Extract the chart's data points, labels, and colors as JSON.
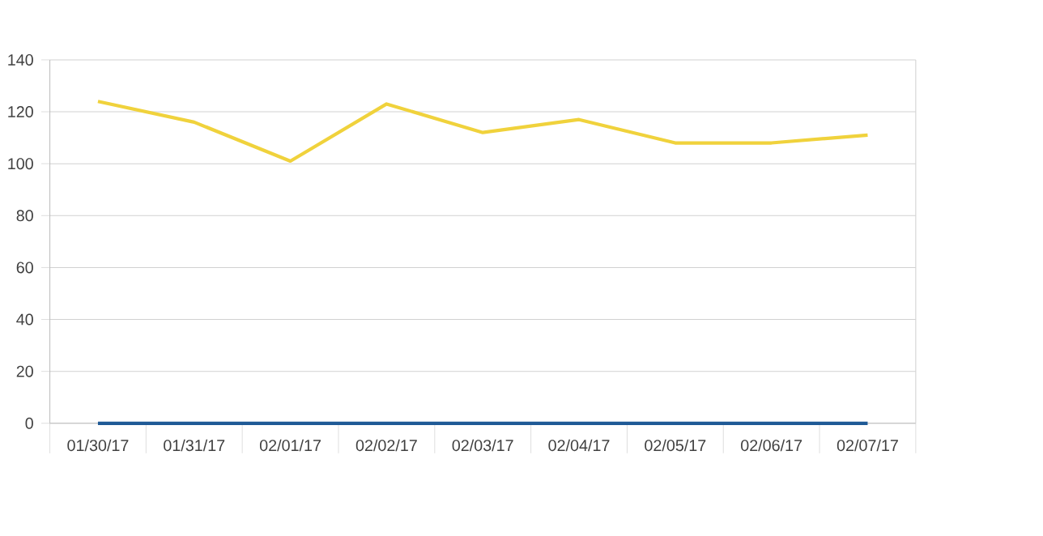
{
  "chart_data": {
    "type": "line",
    "categories": [
      "01/30/17",
      "01/31/17",
      "02/01/17",
      "02/02/17",
      "02/03/17",
      "02/04/17",
      "02/05/17",
      "02/06/17",
      "02/07/17"
    ],
    "series": [
      {
        "color": "#f0d23c",
        "values": [
          124,
          116,
          101,
          123,
          112,
          117,
          108,
          108,
          111
        ]
      },
      {
        "color": "#1f5a96",
        "values": [
          0,
          0,
          0,
          0,
          0,
          0,
          0,
          0,
          0
        ]
      }
    ],
    "ylim": [
      0,
      140
    ],
    "yticks": [
      0,
      20,
      40,
      60,
      80,
      100,
      120,
      140
    ],
    "grid": "y",
    "marker": "none",
    "line_style": "solid"
  }
}
